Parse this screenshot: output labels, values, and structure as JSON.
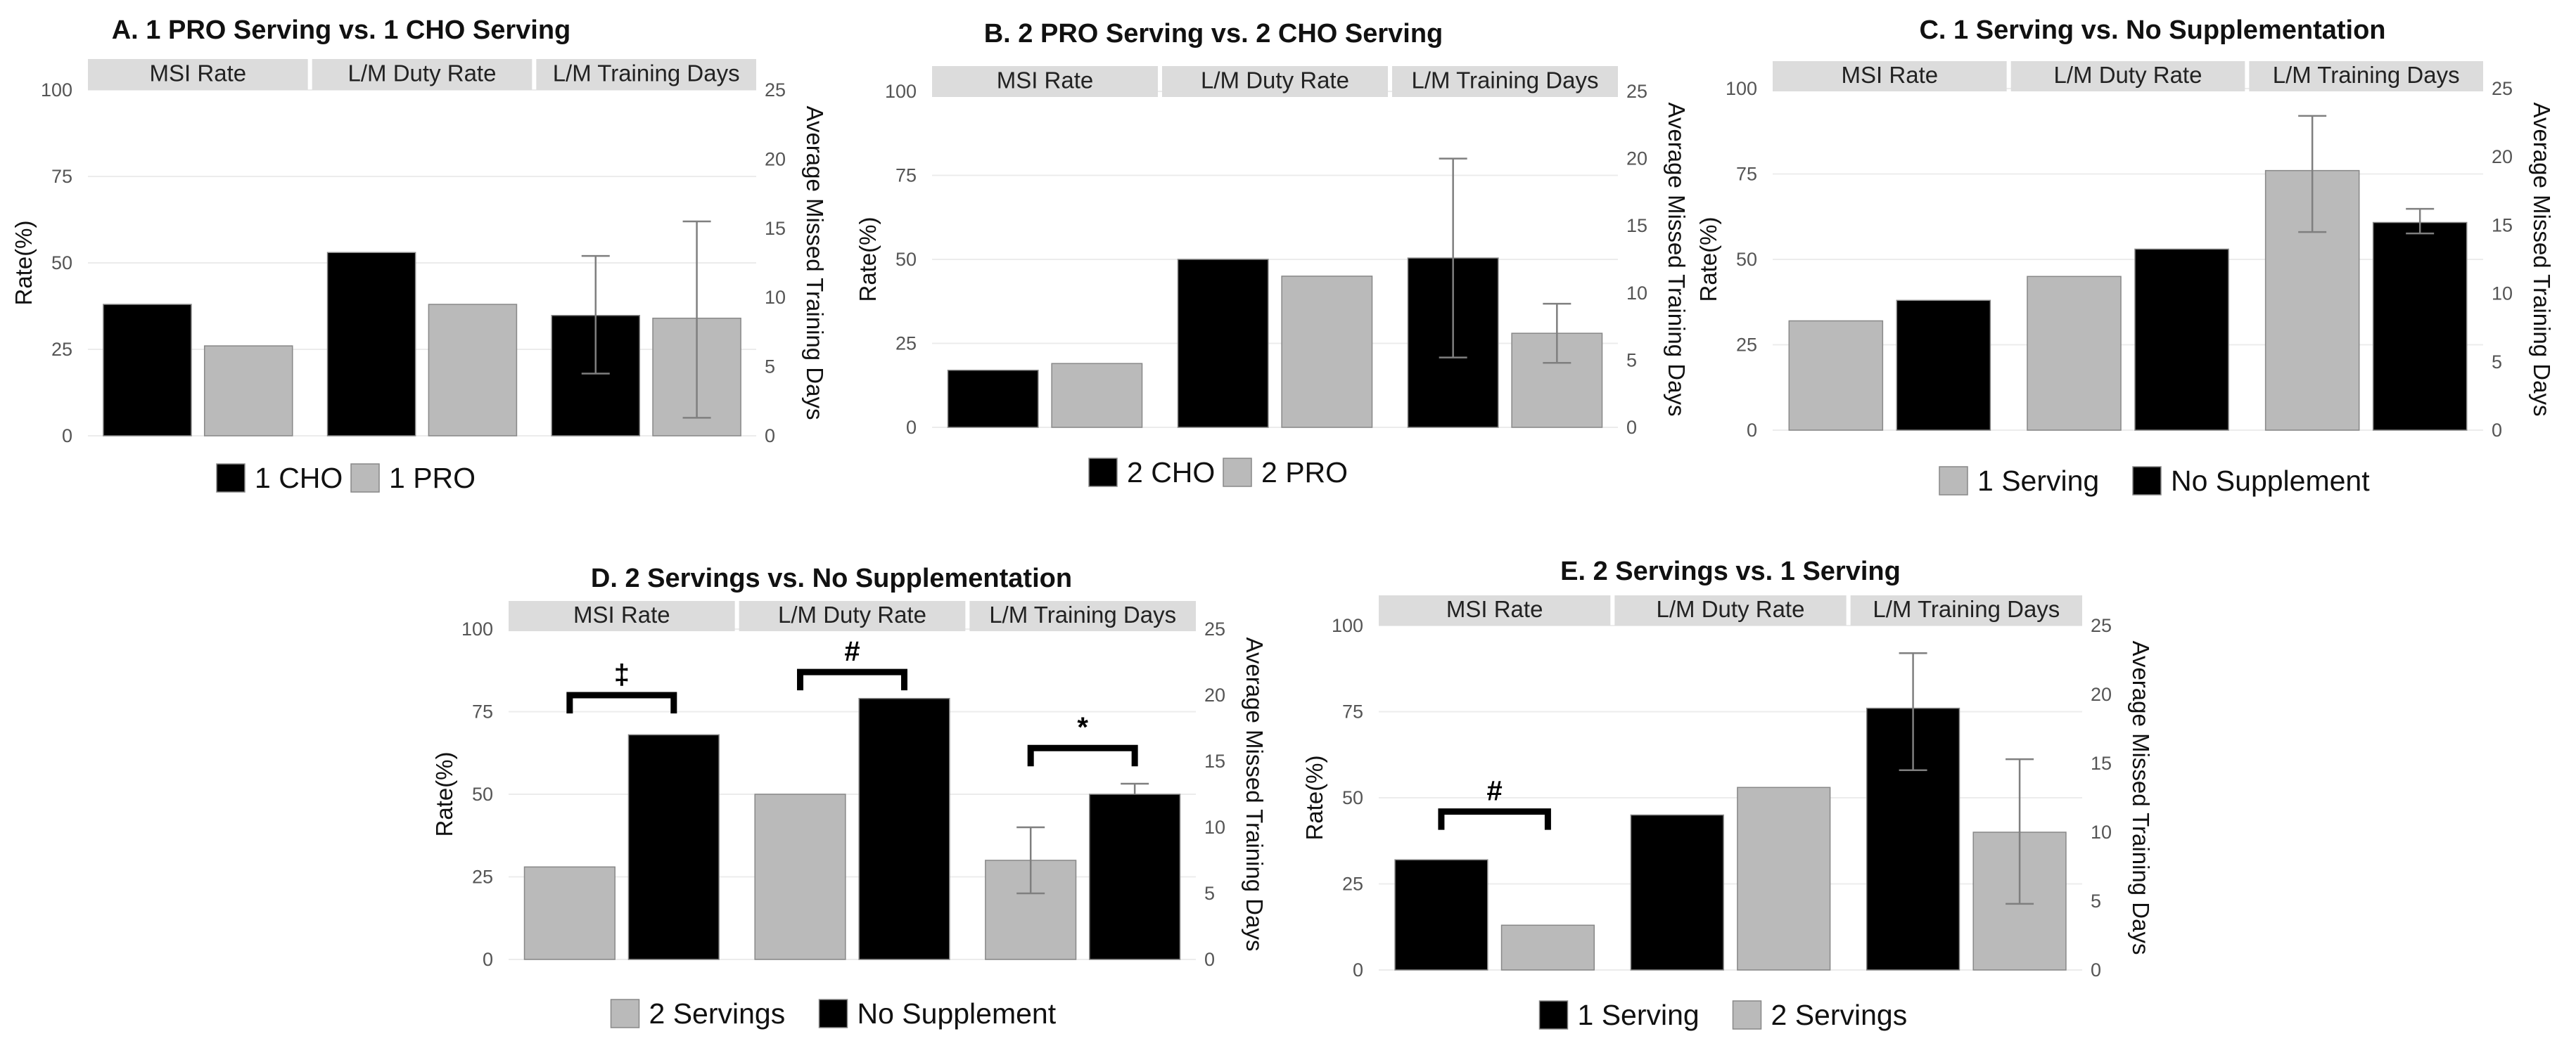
{
  "colors": {
    "black_bar": "#000000",
    "gray_bar": "#bababa",
    "bar_edge": "#888888"
  },
  "facets": [
    "MSI Rate",
    "L/M Duty Rate",
    "L/M Training Days"
  ],
  "chart_data": [
    {
      "id": "A",
      "type": "bar",
      "title": "A. 1 PRO Serving vs. 1 CHO Serving",
      "ylabel": "Rate(%)",
      "y2label": "Average Missed Training Days",
      "ylim": [
        0,
        100
      ],
      "yticks": [
        "0",
        "25",
        "50",
        "75",
        "100"
      ],
      "y2lim": [
        0,
        25
      ],
      "y2ticks": [
        "0",
        "5",
        "10",
        "15",
        "20",
        "25"
      ],
      "legend": [
        {
          "label": "1 CHO",
          "color": "#000000"
        },
        {
          "label": "1 PRO",
          "color": "#bababa"
        }
      ],
      "series": [
        {
          "name": "1 CHO",
          "color": "#000000",
          "values": [
            38,
            53,
            8.7
          ],
          "err_low": [
            null,
            null,
            4.5
          ],
          "err_high": [
            null,
            null,
            13.0
          ]
        },
        {
          "name": "1 PRO",
          "color": "#bababa",
          "values": [
            26,
            38,
            8.5
          ],
          "err_low": [
            null,
            null,
            1.3
          ],
          "err_high": [
            null,
            null,
            15.5
          ]
        }
      ],
      "annotations": []
    },
    {
      "id": "B",
      "type": "bar",
      "title": "B. 2 PRO Serving vs. 2 CHO Serving",
      "ylabel": "Rate(%)",
      "y2label": "Average Missed Training Days",
      "ylim": [
        0,
        100
      ],
      "yticks": [
        "0",
        "25",
        "50",
        "75",
        "100"
      ],
      "y2lim": [
        0,
        25
      ],
      "y2ticks": [
        "0",
        "5",
        "10",
        "15",
        "20",
        "25"
      ],
      "legend": [
        {
          "label": "2 CHO",
          "color": "#000000"
        },
        {
          "label": "2 PRO",
          "color": "#bababa"
        }
      ],
      "series": [
        {
          "name": "2 CHO",
          "color": "#000000",
          "values": [
            17,
            50,
            12.6
          ],
          "err_low": [
            null,
            null,
            5.2
          ],
          "err_high": [
            null,
            null,
            20.0
          ]
        },
        {
          "name": "2 PRO",
          "color": "#bababa",
          "values": [
            19,
            45,
            7.0
          ],
          "err_low": [
            null,
            null,
            4.8
          ],
          "err_high": [
            null,
            null,
            9.2
          ]
        }
      ],
      "annotations": []
    },
    {
      "id": "C",
      "type": "bar",
      "title": "C. 1 Serving vs. No Supplementation",
      "ylabel": "Rate(%)",
      "y2label": "Average Missed Training Days",
      "ylim": [
        0,
        100
      ],
      "yticks": [
        "0",
        "25",
        "50",
        "75",
        "100"
      ],
      "y2lim": [
        0,
        25
      ],
      "y2ticks": [
        "0",
        "5",
        "10",
        "15",
        "20",
        "25"
      ],
      "legend": [
        {
          "label": "1 Serving",
          "color": "#bababa"
        },
        {
          "label": "No Supplement",
          "color": "#000000"
        }
      ],
      "series": [
        {
          "name": "1 Serving",
          "color": "#bababa",
          "values": [
            32,
            45,
            19.0
          ],
          "err_low": [
            null,
            null,
            14.5
          ],
          "err_high": [
            null,
            null,
            23.0
          ]
        },
        {
          "name": "No Supplement",
          "color": "#000000",
          "values": [
            38,
            53,
            15.2
          ],
          "err_low": [
            null,
            null,
            14.4
          ],
          "err_high": [
            null,
            null,
            16.2
          ]
        }
      ],
      "annotations": []
    },
    {
      "id": "D",
      "type": "bar",
      "title": "D. 2 Servings vs. No Supplementation",
      "ylabel": "Rate(%)",
      "y2label": "Average Missed Training Days",
      "ylim": [
        0,
        100
      ],
      "yticks": [
        "0",
        "25",
        "50",
        "75",
        "100"
      ],
      "y2lim": [
        0,
        25
      ],
      "y2ticks": [
        "0",
        "5",
        "10",
        "15",
        "20",
        "25"
      ],
      "legend": [
        {
          "label": "2 Servings",
          "color": "#bababa"
        },
        {
          "label": "No Supplement",
          "color": "#000000"
        }
      ],
      "series": [
        {
          "name": "2 Servings",
          "color": "#bababa",
          "values": [
            28,
            50,
            7.5
          ],
          "err_low": [
            null,
            null,
            5.0
          ],
          "err_high": [
            null,
            null,
            10.0
          ]
        },
        {
          "name": "No Supplement",
          "color": "#000000",
          "values": [
            68,
            79,
            12.5
          ],
          "err_low": [
            null,
            null,
            null
          ],
          "err_high": [
            null,
            null,
            13.3
          ]
        }
      ],
      "annotations": [
        {
          "facet": 0,
          "symbol": "‡",
          "level": 80
        },
        {
          "facet": 1,
          "symbol": "#",
          "level": 87
        },
        {
          "facet": 2,
          "symbol": "*",
          "level": 64
        }
      ]
    },
    {
      "id": "E",
      "type": "bar",
      "title": "E. 2 Servings vs. 1 Serving",
      "ylabel": "Rate(%)",
      "y2label": "Average Missed Training Days",
      "ylim": [
        0,
        100
      ],
      "yticks": [
        "0",
        "25",
        "50",
        "75",
        "100"
      ],
      "y2lim": [
        0,
        25
      ],
      "y2ticks": [
        "0",
        "5",
        "10",
        "15",
        "20",
        "25"
      ],
      "legend": [
        {
          "label": "1 Serving",
          "color": "#000000"
        },
        {
          "label": "2 Servings",
          "color": "#bababa"
        }
      ],
      "series": [
        {
          "name": "1 Serving",
          "color": "#000000",
          "values": [
            32,
            45,
            19.0
          ],
          "err_low": [
            null,
            null,
            14.5
          ],
          "err_high": [
            null,
            null,
            23.0
          ]
        },
        {
          "name": "2 Servings",
          "color": "#bababa",
          "values": [
            13,
            53,
            10.0
          ],
          "err_low": [
            null,
            null,
            4.8
          ],
          "err_high": [
            null,
            null,
            15.3
          ]
        }
      ],
      "annotations": [
        {
          "facet": 0,
          "symbol": "#",
          "level": 46
        }
      ]
    }
  ]
}
